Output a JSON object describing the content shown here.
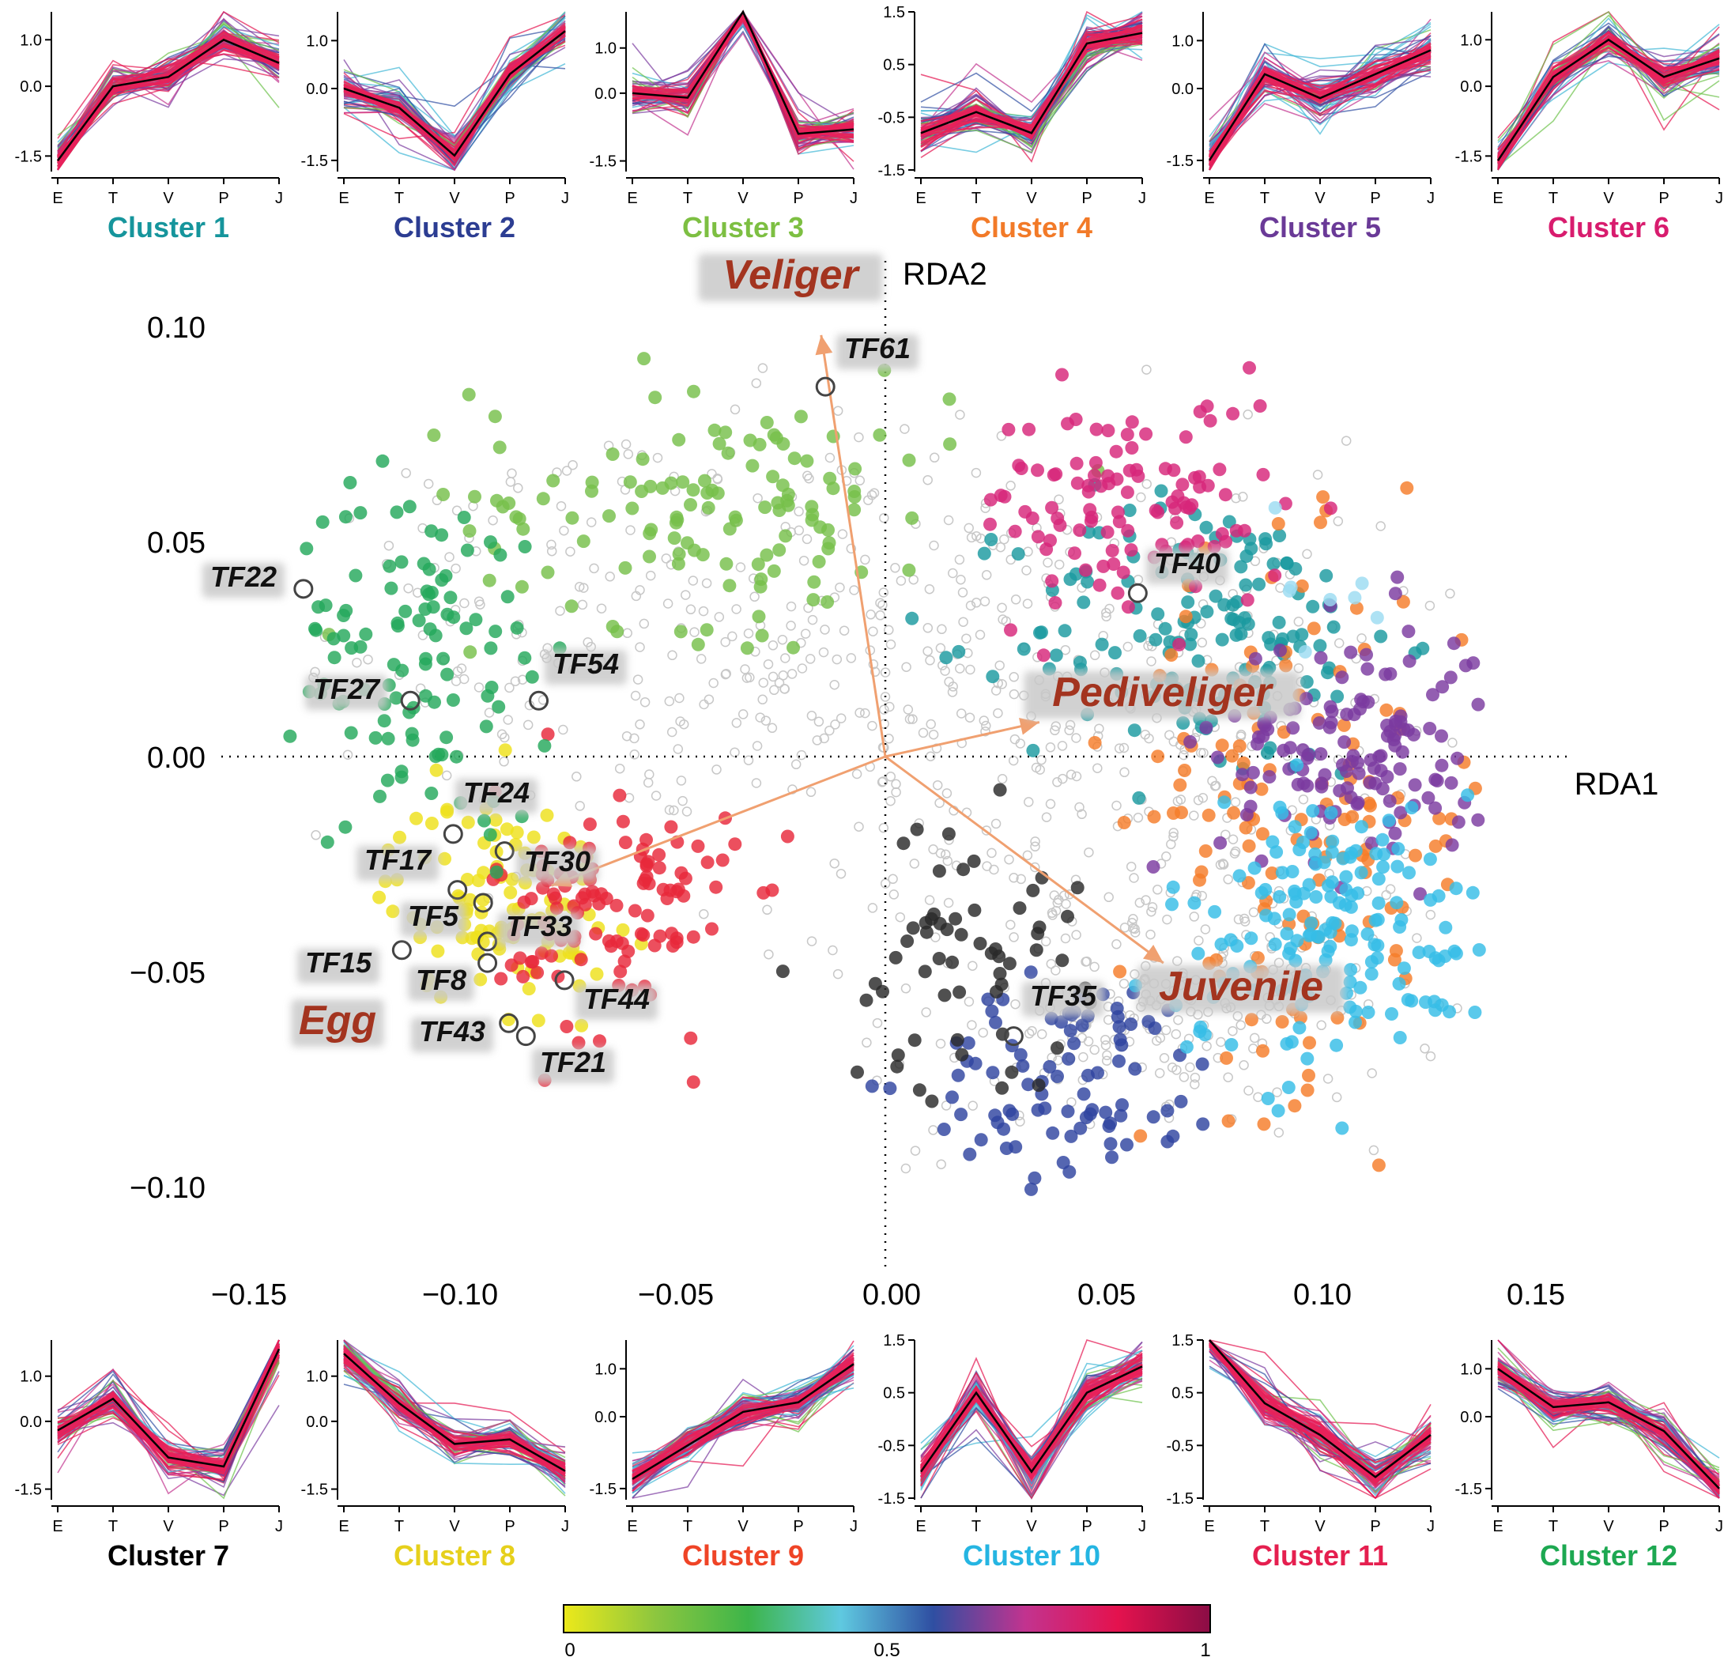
{
  "panel_ticks_x": [
    "E",
    "T",
    "V",
    "P",
    "J"
  ],
  "mini_panels": [
    {
      "label": "Cluster 1",
      "label_color": "#16959c",
      "yticks": [
        "1.0",
        "0.0",
        "-1.5"
      ],
      "ytick_values": [
        1.0,
        0.0,
        -1.5
      ],
      "ylim": [
        -1.8,
        1.6
      ],
      "mean": [
        -1.6,
        0.0,
        0.2,
        1.0,
        0.5
      ]
    },
    {
      "label": "Cluster 2",
      "label_color": "#2c3d92",
      "yticks": [
        "1.0",
        "0.0",
        "-1.5"
      ],
      "ytick_values": [
        1.0,
        0.0,
        -1.5
      ],
      "ylim": [
        -1.7,
        1.6
      ],
      "mean": [
        0.0,
        -0.4,
        -1.4,
        0.3,
        1.2
      ]
    },
    {
      "label": "Cluster 3",
      "label_color": "#7dbf42",
      "yticks": [
        "1.0",
        "0.0",
        "-1.5"
      ],
      "ytick_values": [
        1.0,
        0.0,
        -1.5
      ],
      "ylim": [
        -1.7,
        1.8
      ],
      "mean": [
        0.0,
        -0.1,
        1.8,
        -0.9,
        -0.8
      ]
    },
    {
      "label": "Cluster 4",
      "label_color": "#f27a28",
      "yticks": [
        "1.5",
        "0.5",
        "-0.5",
        "-1.5"
      ],
      "ytick_values": [
        1.5,
        0.5,
        -0.5,
        -1.5
      ],
      "ylim": [
        -1.5,
        1.5
      ],
      "mean": [
        -0.8,
        -0.4,
        -0.8,
        0.9,
        1.1
      ]
    },
    {
      "label": "Cluster 5",
      "label_color": "#6a3a97",
      "yticks": [
        "1.0",
        "0.0",
        "-1.5"
      ],
      "ytick_values": [
        1.0,
        0.0,
        -1.5
      ],
      "ylim": [
        -1.7,
        1.6
      ],
      "mean": [
        -1.5,
        0.3,
        -0.2,
        0.3,
        0.8
      ]
    },
    {
      "label": "Cluster 6",
      "label_color": "#d81c6e",
      "yticks": [
        "1.0",
        "0.0",
        "-1.5"
      ],
      "ytick_values": [
        1.0,
        0.0,
        -1.5
      ],
      "ylim": [
        -1.8,
        1.6
      ],
      "mean": [
        -1.6,
        0.2,
        1.0,
        0.2,
        0.6
      ]
    },
    {
      "label": "Cluster 7",
      "label_color": "#000000",
      "yticks": [
        "1.0",
        "0.0",
        "-1.5"
      ],
      "ytick_values": [
        1.0,
        0.0,
        -1.5
      ],
      "ylim": [
        -1.7,
        1.8
      ],
      "mean": [
        -0.2,
        0.5,
        -0.8,
        -1.0,
        1.6
      ]
    },
    {
      "label": "Cluster 8",
      "label_color": "#e6d01c",
      "yticks": [
        "1.0",
        "0.0",
        "-1.5"
      ],
      "ytick_values": [
        1.0,
        0.0,
        -1.5
      ],
      "ylim": [
        -1.7,
        1.8
      ],
      "mean": [
        1.5,
        0.4,
        -0.5,
        -0.4,
        -1.1
      ]
    },
    {
      "label": "Cluster 9",
      "label_color": "#ef4426",
      "yticks": [
        "1.0",
        "0.0",
        "-1.5"
      ],
      "ytick_values": [
        1.0,
        0.0,
        -1.5
      ],
      "ylim": [
        -1.7,
        1.6
      ],
      "mean": [
        -1.3,
        -0.6,
        0.1,
        0.3,
        1.1
      ]
    },
    {
      "label": "Cluster 10",
      "label_color": "#25b5e2",
      "yticks": [
        "1.5",
        "0.5",
        "-0.5",
        "-1.5"
      ],
      "ytick_values": [
        1.5,
        0.5,
        -0.5,
        -1.5
      ],
      "ylim": [
        -1.5,
        1.5
      ],
      "mean": [
        -1.0,
        0.5,
        -1.0,
        0.5,
        1.0
      ]
    },
    {
      "label": "Cluster 11",
      "label_color": "#e51f4f",
      "yticks": [
        "1.5",
        "0.5",
        "-0.5",
        "-1.5"
      ],
      "ytick_values": [
        1.5,
        0.5,
        -0.5,
        -1.5
      ],
      "ylim": [
        -1.5,
        1.5
      ],
      "mean": [
        1.5,
        0.3,
        -0.3,
        -1.1,
        -0.3
      ]
    },
    {
      "label": "Cluster 12",
      "label_color": "#1da851",
      "yticks": [
        "1.0",
        "0.0",
        "-1.5"
      ],
      "ytick_values": [
        1.0,
        0.0,
        -1.5
      ],
      "ylim": [
        -1.7,
        1.6
      ],
      "mean": [
        1.0,
        0.2,
        0.3,
        -0.3,
        -1.5
      ]
    }
  ],
  "chart_data": {
    "type": "scatter",
    "xlabel": "RDA1",
    "ylabel": "RDA2",
    "xlim": [
      -0.15,
      0.15
    ],
    "ylim": [
      -0.12,
      0.11
    ],
    "xticks": [
      -0.15,
      -0.1,
      -0.05,
      0.0,
      0.05,
      0.1,
      0.15
    ],
    "xtick_labels": [
      "−0.15",
      "−0.10",
      "−0.05",
      "0.00",
      "0.05",
      "0.10",
      "0.15"
    ],
    "yticks": [
      0.1,
      0.05,
      0.0,
      -0.05,
      -0.1
    ],
    "ytick_labels": [
      "0.10",
      "0.05",
      "0.00",
      "−0.05",
      "−0.10"
    ],
    "arrows": [
      {
        "label": "Veliger",
        "x": -0.015,
        "y": 0.098
      },
      {
        "label": "Pediveliger",
        "x": 0.036,
        "y": 0.008
      },
      {
        "label": "Egg",
        "x": -0.078,
        "y": -0.03
      },
      {
        "label": "Juvenile",
        "x": 0.065,
        "y": -0.048
      }
    ],
    "tf_labels": [
      {
        "label": "TF61",
        "x": -0.014,
        "y": 0.086
      },
      {
        "label": "TF22",
        "x": -0.136,
        "y": 0.039
      },
      {
        "label": "TF40",
        "x": 0.059,
        "y": 0.038
      },
      {
        "label": "TF27",
        "x": -0.111,
        "y": 0.013
      },
      {
        "label": "TF54",
        "x": -0.081,
        "y": 0.013
      },
      {
        "label": "TF24",
        "x": -0.101,
        "y": -0.018
      },
      {
        "label": "TF17",
        "x": -0.1,
        "y": -0.031
      },
      {
        "label": "TF30",
        "x": -0.089,
        "y": -0.022
      },
      {
        "label": "TF5",
        "x": -0.094,
        "y": -0.034
      },
      {
        "label": "TF33",
        "x": -0.093,
        "y": -0.043
      },
      {
        "label": "TF15",
        "x": -0.113,
        "y": -0.045
      },
      {
        "label": "TF8",
        "x": -0.093,
        "y": -0.048
      },
      {
        "label": "TF44",
        "x": -0.075,
        "y": -0.052
      },
      {
        "label": "TF43",
        "x": -0.088,
        "y": -0.062
      },
      {
        "label": "TF21",
        "x": -0.084,
        "y": -0.065
      },
      {
        "label": "TF35",
        "x": 0.03,
        "y": -0.065
      }
    ],
    "clusters": [
      {
        "cluster": "Cluster 1",
        "color": "#1b9aa0",
        "center": [
          0.075,
          0.028
        ],
        "spread": [
          0.022,
          0.017
        ]
      },
      {
        "cluster": "Cluster 2",
        "color": "#2f44a0",
        "center": [
          0.045,
          -0.075
        ],
        "spread": [
          0.018,
          0.012
        ]
      },
      {
        "cluster": "Cluster 3",
        "color": "#76c04a",
        "center": [
          -0.04,
          0.06
        ],
        "spread": [
          0.028,
          0.015
        ]
      },
      {
        "cluster": "Cluster 4",
        "color": "#f57c2a",
        "center": [
          0.098,
          -0.015
        ],
        "spread": [
          0.022,
          0.03
        ]
      },
      {
        "cluster": "Cluster 5",
        "color": "#7b3aa0",
        "center": [
          0.11,
          0.002
        ],
        "spread": [
          0.016,
          0.015
        ]
      },
      {
        "cluster": "Cluster 6",
        "color": "#d7267a",
        "center": [
          0.058,
          0.058
        ],
        "spread": [
          0.018,
          0.013
        ]
      },
      {
        "cluster": "Cluster 7",
        "color": "#2a2a2a",
        "center": [
          0.018,
          -0.046
        ],
        "spread": [
          0.014,
          0.016
        ]
      },
      {
        "cluster": "Cluster 8",
        "color": "#eee11a",
        "center": [
          -0.09,
          -0.033
        ],
        "spread": [
          0.013,
          0.012
        ]
      },
      {
        "cluster": "Cluster 9",
        "color": "#e8283a",
        "center": [
          -0.063,
          -0.036
        ],
        "spread": [
          0.014,
          0.015
        ]
      },
      {
        "cluster": "Cluster 10",
        "color": "#36bde6",
        "center": [
          0.105,
          -0.04
        ],
        "spread": [
          0.02,
          0.016
        ]
      },
      {
        "cluster": "Cluster 11",
        "color": "#9cdcf2",
        "center": [
          0.1,
          0.04
        ],
        "spread": [
          0.01,
          0.01
        ]
      },
      {
        "cluster": "Cluster 12",
        "color": "#25a85b",
        "center": [
          -0.108,
          0.025
        ],
        "spread": [
          0.015,
          0.02
        ]
      }
    ]
  },
  "colorbar": {
    "ticks": [
      "0",
      "0.5",
      "1"
    ],
    "stops": [
      "#ece91a",
      "#8cc63f",
      "#3db54a",
      "#5fc9e0",
      "#2f4fa2",
      "#c2338f",
      "#e4124e",
      "#8b0d45"
    ]
  }
}
